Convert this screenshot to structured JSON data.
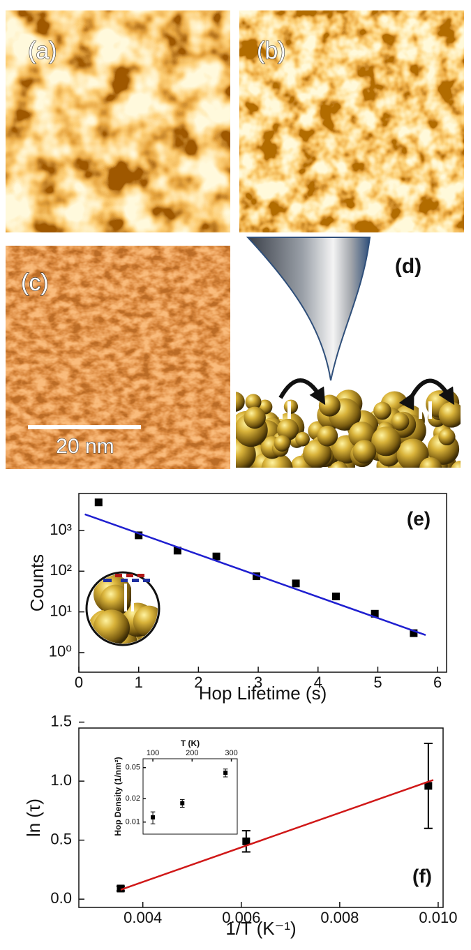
{
  "panels": [
    {
      "label": "(a)"
    },
    {
      "label": "(b)"
    },
    {
      "label": "(c)"
    },
    {
      "label": "(d)"
    }
  ],
  "scale_bar": "20 nm",
  "chart_data": [
    {
      "type": "scatter",
      "annotation": "(e)",
      "xlabel": "Hop Lifetime (s)",
      "ylabel": "Counts",
      "xlim": [
        0,
        6.15
      ],
      "ylim": [
        0.33,
        8100
      ],
      "ylog": true,
      "xticks": [
        0,
        1,
        2,
        3,
        4,
        5,
        6
      ],
      "yticks": [
        {
          "value": 1,
          "label": "10⁰"
        },
        {
          "value": 10,
          "label": "10¹"
        },
        {
          "value": 100,
          "label": "10²"
        },
        {
          "value": 1000,
          "label": "10³"
        }
      ],
      "series": [
        {
          "color": "#000000",
          "marker": "square",
          "x": [
            0.33,
            1.0,
            1.65,
            2.3,
            2.97,
            3.63,
            4.3,
            4.95,
            5.6
          ],
          "values": [
            4900,
            760,
            320,
            230,
            75,
            50,
            24,
            9,
            3
          ]
        },
        {
          "color": "#1f1fd0",
          "style": "line",
          "x": [
            0.1,
            5.8
          ],
          "values": [
            2500,
            2.7
          ]
        }
      ]
    },
    {
      "type": "scatter",
      "annotation": "(f)",
      "xlabel": "1/T (K⁻¹)",
      "ylabel": "ln (τ)",
      "xlim": [
        0.0027,
        0.0101
      ],
      "ylim": [
        -0.07,
        1.45
      ],
      "xticks": [
        0.004,
        0.006,
        0.008,
        {
          "value": 0.01,
          "label": "0.010"
        }
      ],
      "yticks": [
        {
          "value": 0,
          "label": "0.0"
        },
        0.5,
        {
          "value": 1,
          "label": "1.0"
        },
        1.5
      ],
      "series": [
        {
          "color": "#000000",
          "marker": "square",
          "x": [
            0.00355,
            0.0061,
            0.0098
          ],
          "values": [
            0.09,
            0.49,
            0.96
          ],
          "errors": [
            0.02,
            0.09,
            0.36
          ]
        },
        {
          "color": "#d01818",
          "style": "line",
          "x": [
            0.00355,
            0.0099
          ],
          "values": [
            0.08,
            1.01
          ]
        }
      ]
    },
    {
      "type": "scatter",
      "inset": true,
      "xaxis": "top",
      "xlabel": "T (K)",
      "ylabel": "Hop Density (1/nm²)",
      "xlim": [
        75,
        315
      ],
      "ylim": [
        0.007,
        0.065
      ],
      "ylog": true,
      "xticks": [
        100,
        200,
        300
      ],
      "yticks": [
        0.01,
        0.02,
        0.05
      ],
      "series": [
        {
          "color": "#000000",
          "marker": "square",
          "x": [
            100,
            175,
            285
          ],
          "values": [
            0.0115,
            0.0175,
            0.043
          ],
          "errors": [
            0.002,
            0.002,
            0.005
          ]
        }
      ]
    }
  ]
}
